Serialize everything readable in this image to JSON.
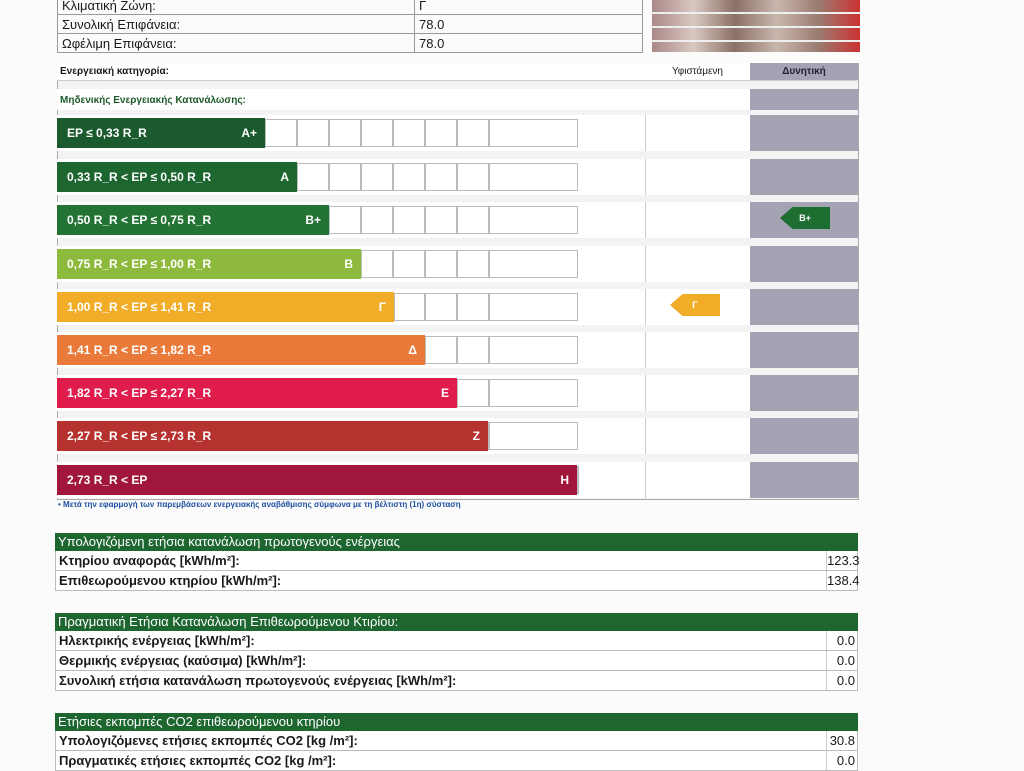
{
  "info": [
    {
      "label": "Κλιματική Ζώνη:",
      "value": "Γ"
    },
    {
      "label": "Συνολική Επιφάνεια:",
      "value": "78.0"
    },
    {
      "label": "Ωφέλιμη Επιφάνεια:",
      "value": "78.0"
    }
  ],
  "rating": {
    "header_label": "Ενεργειακή κατηγορία:",
    "col_existing": "Υφιστάμενη",
    "col_potential": "Δυνητική",
    "zero_label": "Μηδενικής Ενεργειακής Κατανάλωσης:",
    "classes": [
      {
        "range": "EP ≤ 0,33 R_R",
        "class": "A+",
        "color": "#1b5a2c"
      },
      {
        "range": "0,33 R_R < EP ≤ 0,50 R_R",
        "class": "A",
        "color": "#1d6630"
      },
      {
        "range": "0,50 R_R < EP ≤ 0,75 R_R",
        "class": "B+",
        "color": "#237434"
      },
      {
        "range": "0,75 R_R < EP ≤ 1,00 R_R",
        "class": "B",
        "color": "#8dba3c"
      },
      {
        "range": "1,00 R_R < EP ≤ 1,41 R_R",
        "class": "Γ",
        "color": "#f2ad28"
      },
      {
        "range": "1,41 R_R < EP ≤ 1,82 R_R",
        "class": "Δ",
        "color": "#ea7a3a"
      },
      {
        "range": "1,82 R_R < EP ≤ 2,27 R_R",
        "class": "Ε",
        "color": "#df1c4b"
      },
      {
        "range": "2,27 R_R < EP ≤ 2,73 R_R",
        "class": "Ζ",
        "color": "#b6322f"
      },
      {
        "range": "2,73 R_R < EP",
        "class": "Η",
        "color": "#a1173b"
      }
    ],
    "existing_class": "Γ",
    "existing_color": "#f2ad28",
    "potential_class": "B+",
    "potential_color": "#1d6e30",
    "footnote": "• Μετά την εφαρμογή των παρεμβάσεων ενεργειακής αναβάθμισης σύμφωνα με τη βέλτιστη (1η) σύσταση"
  },
  "sections": [
    {
      "title": "Υπολογιζόμενη ετήσια κατανάλωση πρωτογενούς ενέργειας",
      "rows": [
        {
          "label": "Κτηρίου αναφοράς [kWh/m²]:",
          "value": "123.3"
        },
        {
          "label": "Επιθεωρούμενου κτηρίου [kWh/m²]:",
          "value": "138.4"
        }
      ]
    },
    {
      "title": "Πραγματική Ετήσια Κατανάλωση Επιθεωρούμενου Κτιρίου:",
      "rows": [
        {
          "label": "Ηλεκτρικής ενέργειας [kWh/m²]:",
          "value": "0.0"
        },
        {
          "label": "Θερμικής ενέργειας (καύσιμα) [kWh/m²]:",
          "value": "0.0"
        },
        {
          "label": "Συνολική ετήσια κατανάλωση πρωτογενούς ενέργειας [kWh/m²]:",
          "value": "0.0"
        }
      ]
    },
    {
      "title": "Ετήσιες εκπομπές CO2 επιθεωρούμενου κτηρίου",
      "rows": [
        {
          "label": "Υπολογιζόμενες ετήσιες εκπομπές CO2 [kg /m²]:",
          "value": "30.8"
        },
        {
          "label": "Πραγματικές ετήσιες εκπομπές CO2 [kg /m²]:",
          "value": "0.0"
        }
      ]
    }
  ]
}
